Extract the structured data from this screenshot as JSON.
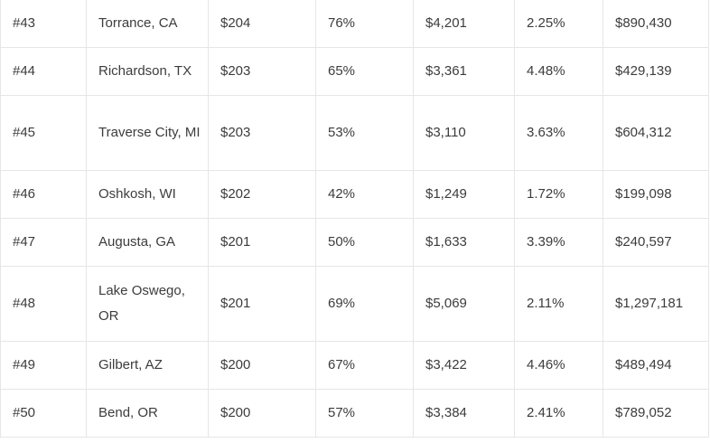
{
  "table": {
    "rows": [
      {
        "rank": "#43",
        "city": "Torrance, CA",
        "cost": "$204",
        "pct": "76%",
        "bill": "$4,201",
        "rate": "2.25%",
        "value": "$890,430"
      },
      {
        "rank": "#44",
        "city": "Richardson, TX",
        "cost": "$203",
        "pct": "65%",
        "bill": "$3,361",
        "rate": "4.48%",
        "value": "$429,139"
      },
      {
        "rank": "#45",
        "city": "Traverse City, MI",
        "cost": "$203",
        "pct": "53%",
        "bill": "$3,110",
        "rate": "3.63%",
        "value": "$604,312"
      },
      {
        "rank": "#46",
        "city": "Oshkosh, WI",
        "cost": "$202",
        "pct": "42%",
        "bill": "$1,249",
        "rate": "1.72%",
        "value": "$199,098"
      },
      {
        "rank": "#47",
        "city": "Augusta, GA",
        "cost": "$201",
        "pct": "50%",
        "bill": "$1,633",
        "rate": "3.39%",
        "value": "$240,597"
      },
      {
        "rank": "#48",
        "city": "Lake Oswego, OR",
        "cost": "$201",
        "pct": "69%",
        "bill": "$5,069",
        "rate": "2.11%",
        "value": "$1,297,181"
      },
      {
        "rank": "#49",
        "city": "Gilbert, AZ",
        "cost": "$200",
        "pct": "67%",
        "bill": "$3,422",
        "rate": "4.46%",
        "value": "$489,494"
      },
      {
        "rank": "#50",
        "city": "Bend, OR",
        "cost": "$200",
        "pct": "57%",
        "bill": "$3,384",
        "rate": "2.41%",
        "value": "$789,052"
      }
    ]
  }
}
